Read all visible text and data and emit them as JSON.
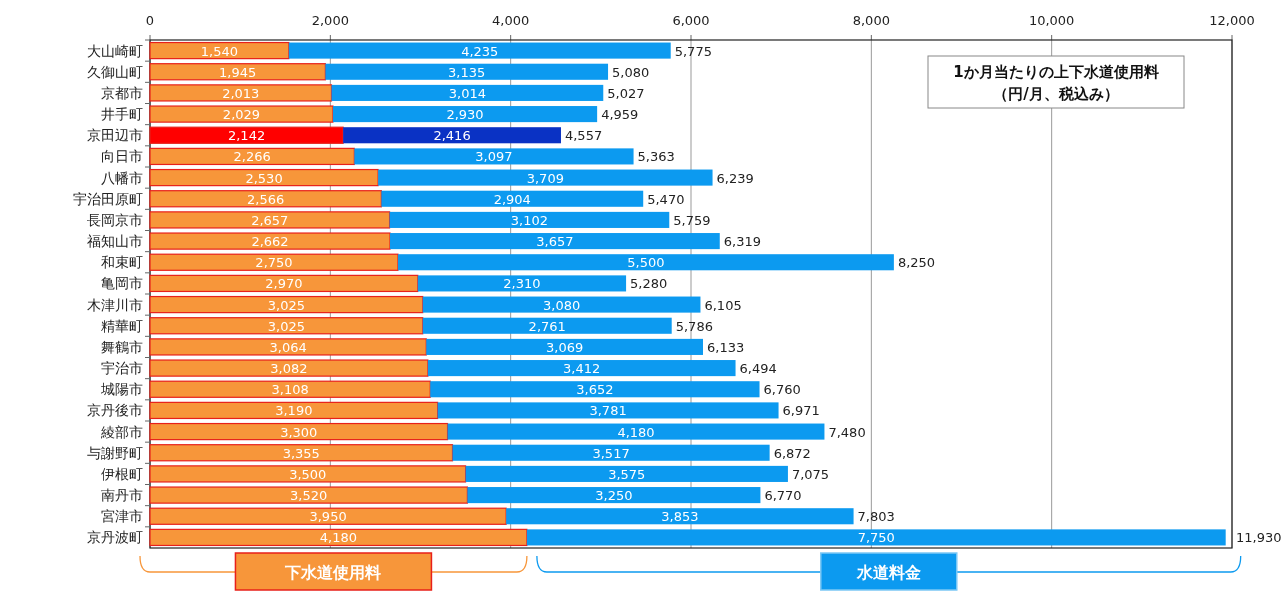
{
  "chart_data": {
    "type": "bar",
    "orientation": "horizontal",
    "stacked": true,
    "title": "1か月当たりの上下水道使用料",
    "subtitle": "（円/月、税込み）",
    "categories": [
      "大山崎町",
      "久御山町",
      "京都市",
      "井手町",
      "京田辺市",
      "向日市",
      "八幡市",
      "宇治田原町",
      "長岡京市",
      "福知山市",
      "和束町",
      "亀岡市",
      "木津川市",
      "精華町",
      "舞鶴市",
      "宇治市",
      "城陽市",
      "京丹後市",
      "綾部市",
      "与謝野町",
      "伊根町",
      "南丹市",
      "宮津市",
      "京丹波町"
    ],
    "series": [
      {
        "name": "下水道使用料",
        "color": "#f7963a",
        "colors": [
          "#f7963a",
          "#f7963a",
          "#f7963a",
          "#f7963a",
          "#ff0000",
          "#f7963a",
          "#f7963a",
          "#f7963a",
          "#f7963a",
          "#f7963a",
          "#f7963a",
          "#f7963a",
          "#f7963a",
          "#f7963a",
          "#f7963a",
          "#f7963a",
          "#f7963a",
          "#f7963a",
          "#f7963a",
          "#f7963a",
          "#f7963a",
          "#f7963a",
          "#f7963a",
          "#f7963a"
        ],
        "values": [
          1540,
          1945,
          2013,
          2029,
          2142,
          2266,
          2530,
          2566,
          2657,
          2662,
          2750,
          2970,
          3025,
          3025,
          3064,
          3082,
          3108,
          3190,
          3300,
          3355,
          3500,
          3520,
          3950,
          4180
        ],
        "value_labels": [
          "1,540",
          "1,945",
          "2,013",
          "2,029",
          "2,142",
          "2,266",
          "2,530",
          "2,566",
          "2,657",
          "2,662",
          "2,750",
          "2,970",
          "3,025",
          "3,025",
          "3,064",
          "3,082",
          "3,108",
          "3,190",
          "3,300",
          "3,355",
          "3,500",
          "3,520",
          "3,950",
          "4,180"
        ]
      },
      {
        "name": "水道料金",
        "color": "#0c9af0",
        "colors": [
          "#0c9af0",
          "#0c9af0",
          "#0c9af0",
          "#0c9af0",
          "#0a32c4",
          "#0c9af0",
          "#0c9af0",
          "#0c9af0",
          "#0c9af0",
          "#0c9af0",
          "#0c9af0",
          "#0c9af0",
          "#0c9af0",
          "#0c9af0",
          "#0c9af0",
          "#0c9af0",
          "#0c9af0",
          "#0c9af0",
          "#0c9af0",
          "#0c9af0",
          "#0c9af0",
          "#0c9af0",
          "#0c9af0",
          "#0c9af0"
        ],
        "values": [
          4235,
          3135,
          3014,
          2930,
          2416,
          3097,
          3709,
          2904,
          3102,
          3657,
          5500,
          2310,
          3080,
          2761,
          3069,
          3412,
          3652,
          3781,
          4180,
          3517,
          3575,
          3250,
          3853,
          7750
        ],
        "value_labels": [
          "4,235",
          "3,135",
          "3,014",
          "2,930",
          "2,416",
          "3,097",
          "3,709",
          "2,904",
          "3,102",
          "3,657",
          "5,500",
          "2,310",
          "3,080",
          "2,761",
          "3,069",
          "3,412",
          "3,652",
          "3,781",
          "4,180",
          "3,517",
          "3,575",
          "3,250",
          "3,853",
          "7,750"
        ]
      }
    ],
    "totals": [
      "5,775",
      "5,080",
      "5,027",
      "4,959",
      "4,557",
      "5,363",
      "6,239",
      "5,470",
      "5,759",
      "6,319",
      "8,250",
      "5,280",
      "6,105",
      "5,786",
      "6,133",
      "6,494",
      "6,760",
      "6,971",
      "7,480",
      "6,872",
      "7,075",
      "6,770",
      "7,803",
      "11,930"
    ],
    "xlim": [
      0,
      12000
    ],
    "xticks": [
      {
        "value": 0,
        "label": "0"
      },
      {
        "value": 2000,
        "label": "2,000"
      },
      {
        "value": 4000,
        "label": "4,000"
      },
      {
        "value": 6000,
        "label": "6,000"
      },
      {
        "value": 8000,
        "label": "8,000"
      },
      {
        "value": 10000,
        "label": "10,000"
      },
      {
        "value": 12000,
        "label": "12,000"
      }
    ],
    "grid": "x",
    "legend": "bottom"
  }
}
